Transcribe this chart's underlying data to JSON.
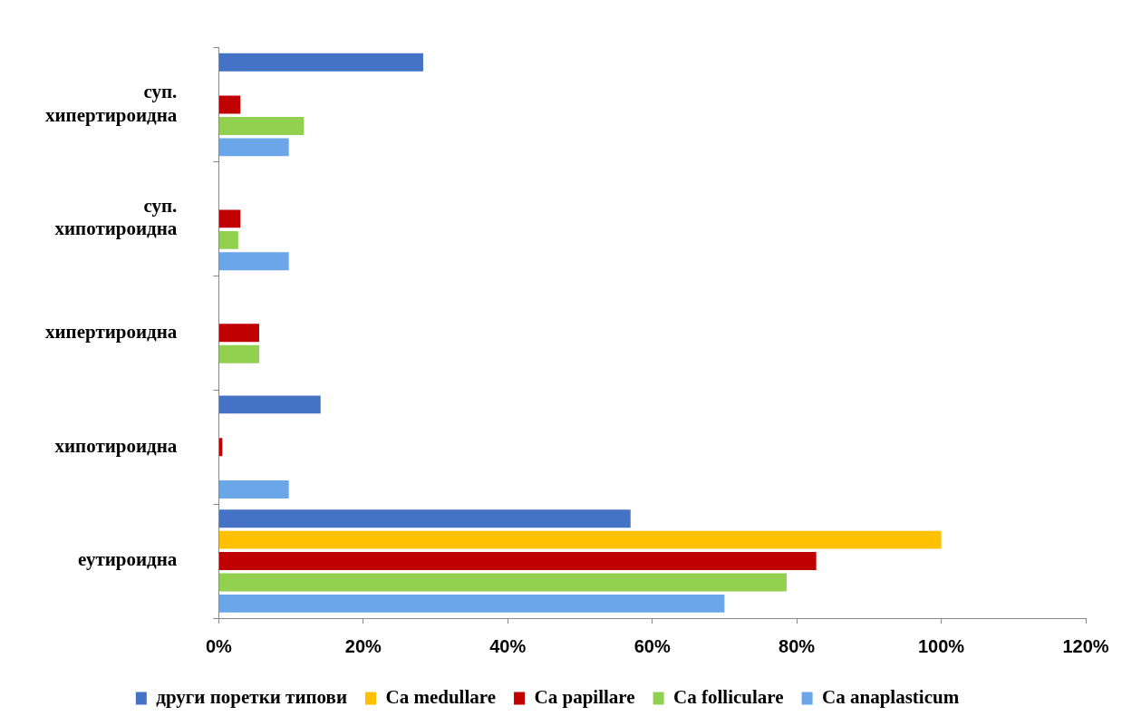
{
  "chart_data": {
    "type": "bar",
    "orientation": "horizontal",
    "categories": [
      "суп. хипертироидна",
      "суп. хипотироидна",
      "хипертироидна",
      "хипотироидна",
      "еутироидна"
    ],
    "series": [
      {
        "name": "други поретки типови",
        "color": "#4472c4",
        "values": [
          28.3,
          null,
          null,
          14.1,
          57
        ]
      },
      {
        "name": "Ca medullare",
        "color": "#ffc000",
        "values": [
          null,
          null,
          null,
          null,
          100
        ]
      },
      {
        "name": "Ca papillare",
        "color": "#c00000",
        "values": [
          3,
          3,
          5.6,
          0.5,
          82.7
        ]
      },
      {
        "name": "Ca folliculare",
        "color": "#92d050",
        "values": [
          11.8,
          2.7,
          5.6,
          null,
          78.6
        ]
      },
      {
        "name": "Ca anaplasticum",
        "color": "#6aa6e8",
        "values": [
          9.7,
          9.7,
          null,
          9.7,
          70
        ]
      }
    ],
    "xlim": [
      0,
      120
    ],
    "xticks": [
      {
        "value": 0,
        "label": "0%"
      },
      {
        "value": 20,
        "label": "20%"
      },
      {
        "value": 40,
        "label": "40%"
      },
      {
        "value": 60,
        "label": "60%"
      },
      {
        "value": 80,
        "label": "80%"
      },
      {
        "value": 100,
        "label": "100%"
      },
      {
        "value": 120,
        "label": "120%"
      }
    ],
    "grid": false,
    "legend": "bottom"
  }
}
